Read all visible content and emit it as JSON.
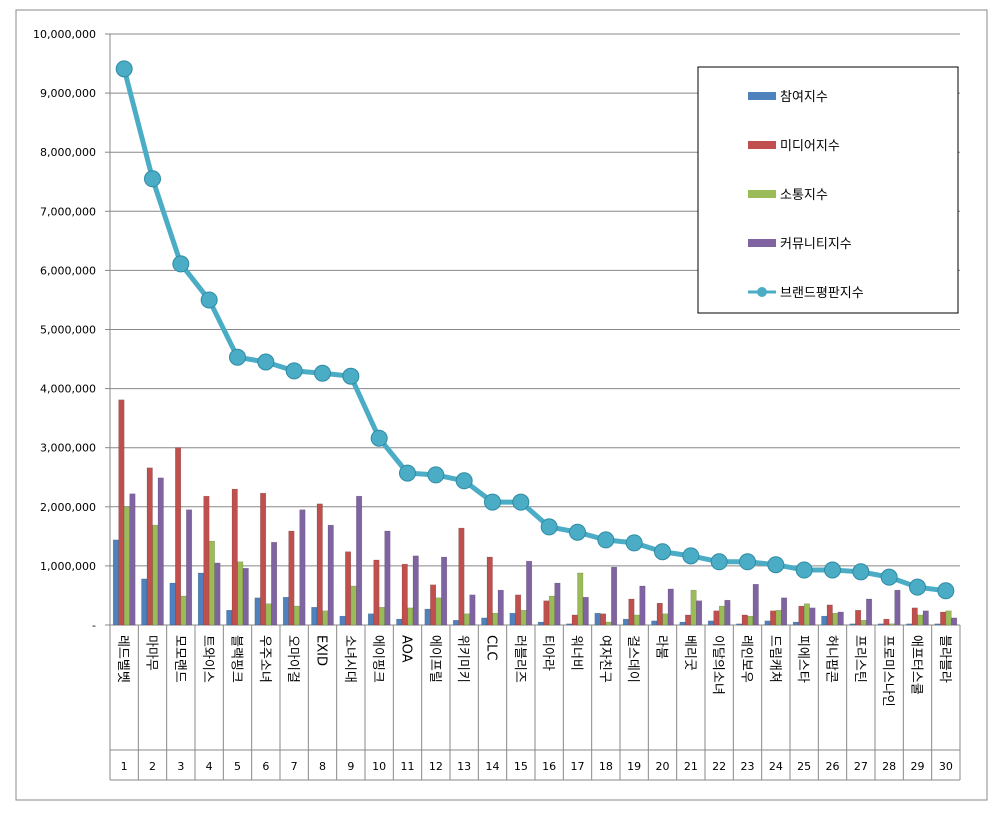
{
  "chart_data": {
    "type": "bar",
    "categories": [
      "레드벨벳",
      "마마무",
      "모모랜드",
      "트와이스",
      "블랙핑크",
      "우주소녀",
      "오마이걸",
      "EXID",
      "소녀시대",
      "에이핑크",
      "AOA",
      "에이프릴",
      "위키미키",
      "CLC",
      "러블리즈",
      "티아라",
      "워너비",
      "여자친구",
      "걸스데이",
      "라붐",
      "베리굿",
      "이달의소녀",
      "레인보우",
      "드림캐쳐",
      "피에스타",
      "허니팝콘",
      "프리스틴",
      "프로미스나인",
      "애프터스쿨",
      "블라블라"
    ],
    "ranks": [
      1,
      2,
      3,
      4,
      5,
      6,
      7,
      8,
      9,
      10,
      11,
      12,
      13,
      14,
      15,
      16,
      17,
      18,
      19,
      20,
      21,
      22,
      23,
      24,
      25,
      26,
      27,
      28,
      29,
      30
    ],
    "series": [
      {
        "name": "참여지수",
        "color": "#4f81bd",
        "values": [
          1440000,
          780000,
          710000,
          880000,
          250000,
          460000,
          470000,
          300000,
          150000,
          190000,
          100000,
          270000,
          80000,
          120000,
          200000,
          50000,
          20000,
          200000,
          100000,
          70000,
          50000,
          70000,
          20000,
          70000,
          50000,
          150000,
          20000,
          20000,
          20000,
          20000
        ]
      },
      {
        "name": "미디어지수",
        "color": "#c0504d",
        "values": [
          3810000,
          2660000,
          3000000,
          2180000,
          2300000,
          2230000,
          1590000,
          2050000,
          1240000,
          1100000,
          1030000,
          680000,
          1640000,
          1150000,
          510000,
          410000,
          170000,
          190000,
          440000,
          370000,
          170000,
          240000,
          170000,
          240000,
          320000,
          340000,
          250000,
          100000,
          290000,
          220000
        ]
      },
      {
        "name": "소통지수",
        "color": "#9bbb59",
        "values": [
          2000000,
          1690000,
          490000,
          1420000,
          1070000,
          360000,
          320000,
          240000,
          660000,
          300000,
          290000,
          460000,
          190000,
          200000,
          250000,
          490000,
          880000,
          50000,
          170000,
          190000,
          590000,
          320000,
          150000,
          250000,
          360000,
          200000,
          80000,
          20000,
          170000,
          240000
        ]
      },
      {
        "name": "커뮤니티지수",
        "color": "#8064a2",
        "values": [
          2220000,
          2490000,
          1950000,
          1050000,
          960000,
          1400000,
          1950000,
          1690000,
          2180000,
          1590000,
          1170000,
          1150000,
          510000,
          590000,
          1080000,
          710000,
          470000,
          980000,
          660000,
          610000,
          410000,
          420000,
          690000,
          460000,
          290000,
          220000,
          440000,
          590000,
          240000,
          120000
        ]
      },
      {
        "name": "브랜드평판지수",
        "color": "#4bacc6",
        "type": "line",
        "values": [
          9410000,
          7550000,
          6110000,
          5500000,
          4530000,
          4450000,
          4300000,
          4260000,
          4210000,
          3160000,
          2570000,
          2540000,
          2440000,
          2080000,
          2080000,
          1660000,
          1570000,
          1440000,
          1390000,
          1240000,
          1170000,
          1070000,
          1070000,
          1020000,
          930000,
          930000,
          900000,
          810000,
          640000,
          580000
        ]
      }
    ],
    "ylim": [
      0,
      10000000
    ],
    "yticks": [
      {
        "value": 0,
        "label": "-"
      },
      {
        "value": 1000000,
        "label": "1,000,000"
      },
      {
        "value": 2000000,
        "label": "2,000,000"
      },
      {
        "value": 3000000,
        "label": "3,000,000"
      },
      {
        "value": 4000000,
        "label": "4,000,000"
      },
      {
        "value": 5000000,
        "label": "5,000,000"
      },
      {
        "value": 6000000,
        "label": "6,000,000"
      },
      {
        "value": 7000000,
        "label": "7,000,000"
      },
      {
        "value": 8000000,
        "label": "8,000,000"
      },
      {
        "value": 9000000,
        "label": "9,000,000"
      },
      {
        "value": 10000000,
        "label": "10,000,000"
      }
    ],
    "grid": true,
    "legend": "upper right"
  }
}
